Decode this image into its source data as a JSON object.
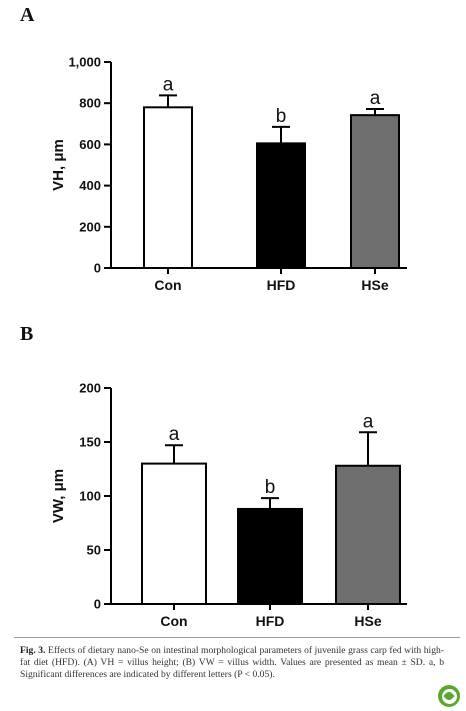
{
  "panels": {
    "a": {
      "label": "A"
    },
    "b": {
      "label": "B"
    }
  },
  "chart_data": [
    {
      "type": "bar",
      "panel": "A",
      "categories": [
        "Con",
        "HFD",
        "HSe"
      ],
      "values": [
        780,
        605,
        742
      ],
      "errors": [
        58,
        80,
        30
      ],
      "significance": [
        "a",
        "b",
        "a"
      ],
      "bar_colors": [
        "#ffffff",
        "#000000",
        "#6e6e6e"
      ],
      "ylabel": "VH, μm",
      "xlabel": "",
      "ylim": [
        0,
        1000
      ],
      "yticks": [
        0,
        200,
        400,
        600,
        800,
        1000
      ],
      "ytick_labels": [
        "0",
        "200",
        "400",
        "600",
        "800",
        "1,000"
      ]
    },
    {
      "type": "bar",
      "panel": "B",
      "categories": [
        "Con",
        "HFD",
        "HSe"
      ],
      "values": [
        130,
        88,
        128
      ],
      "errors": [
        17,
        10,
        31
      ],
      "significance": [
        "a",
        "b",
        "a"
      ],
      "bar_colors": [
        "#ffffff",
        "#000000",
        "#6e6e6e"
      ],
      "ylabel": "VW, μm",
      "xlabel": "",
      "ylim": [
        0,
        200
      ],
      "yticks": [
        0,
        50,
        100,
        150,
        200
      ],
      "ytick_labels": [
        "0",
        "50",
        "100",
        "150",
        "200"
      ]
    }
  ],
  "caption": {
    "fig_num": "Fig. 3.",
    "text": "Effects of dietary nano-Se on intestinal morphological parameters of juvenile grass carp fed with high-fat diet (HFD). (A) VH = villus height; (B) VW = villus width. Values are presented as mean ± SD. a, b Significant differences are indicated by different letters (P < 0.05)."
  },
  "badge": {
    "icon": "leaf-icon",
    "color": "#5aa832"
  }
}
